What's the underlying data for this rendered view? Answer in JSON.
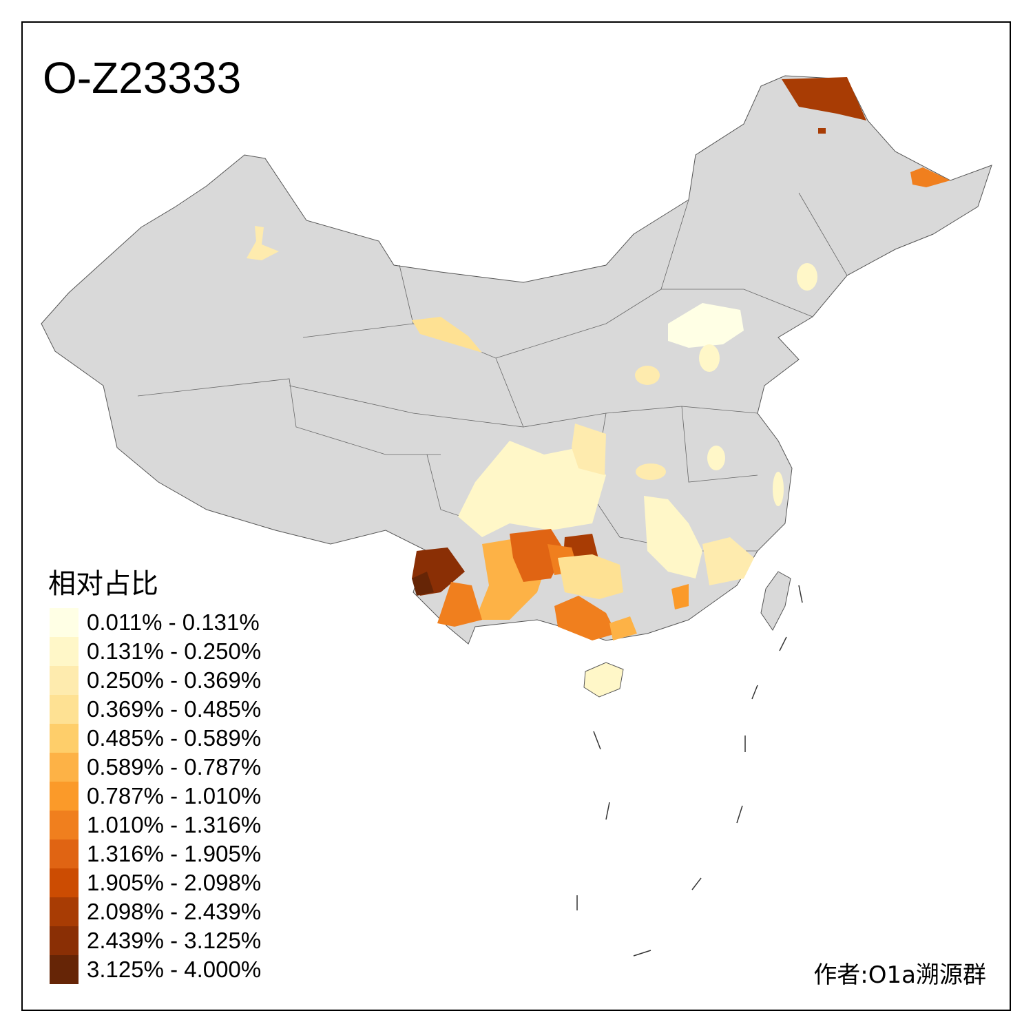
{
  "title": "O-Z23333",
  "legend": {
    "title": "相对占比",
    "classes": [
      {
        "label": "0.011% - 0.131%",
        "color": "#FFFFE5"
      },
      {
        "label": "0.131% - 0.250%",
        "color": "#FFF7C8"
      },
      {
        "label": "0.250% - 0.369%",
        "color": "#FEEBAE"
      },
      {
        "label": "0.369% - 0.485%",
        "color": "#FEE193"
      },
      {
        "label": "0.485% - 0.589%",
        "color": "#FECE6A"
      },
      {
        "label": "0.589% - 0.787%",
        "color": "#FDB246"
      },
      {
        "label": "0.787% - 1.010%",
        "color": "#FB9A29"
      },
      {
        "label": "1.010% - 1.316%",
        "color": "#F07F1E"
      },
      {
        "label": "1.316% - 1.905%",
        "color": "#E06413"
      },
      {
        "label": "1.905% - 2.098%",
        "color": "#CC4C02"
      },
      {
        "label": "2.098% - 2.439%",
        "color": "#A83C04"
      },
      {
        "label": "2.439% - 3.125%",
        "color": "#8A2F05"
      },
      {
        "label": "3.125% - 4.000%",
        "color": "#662506"
      }
    ]
  },
  "no_data_color": "#D9D9D9",
  "credit": "作者:O1a溯源群"
}
